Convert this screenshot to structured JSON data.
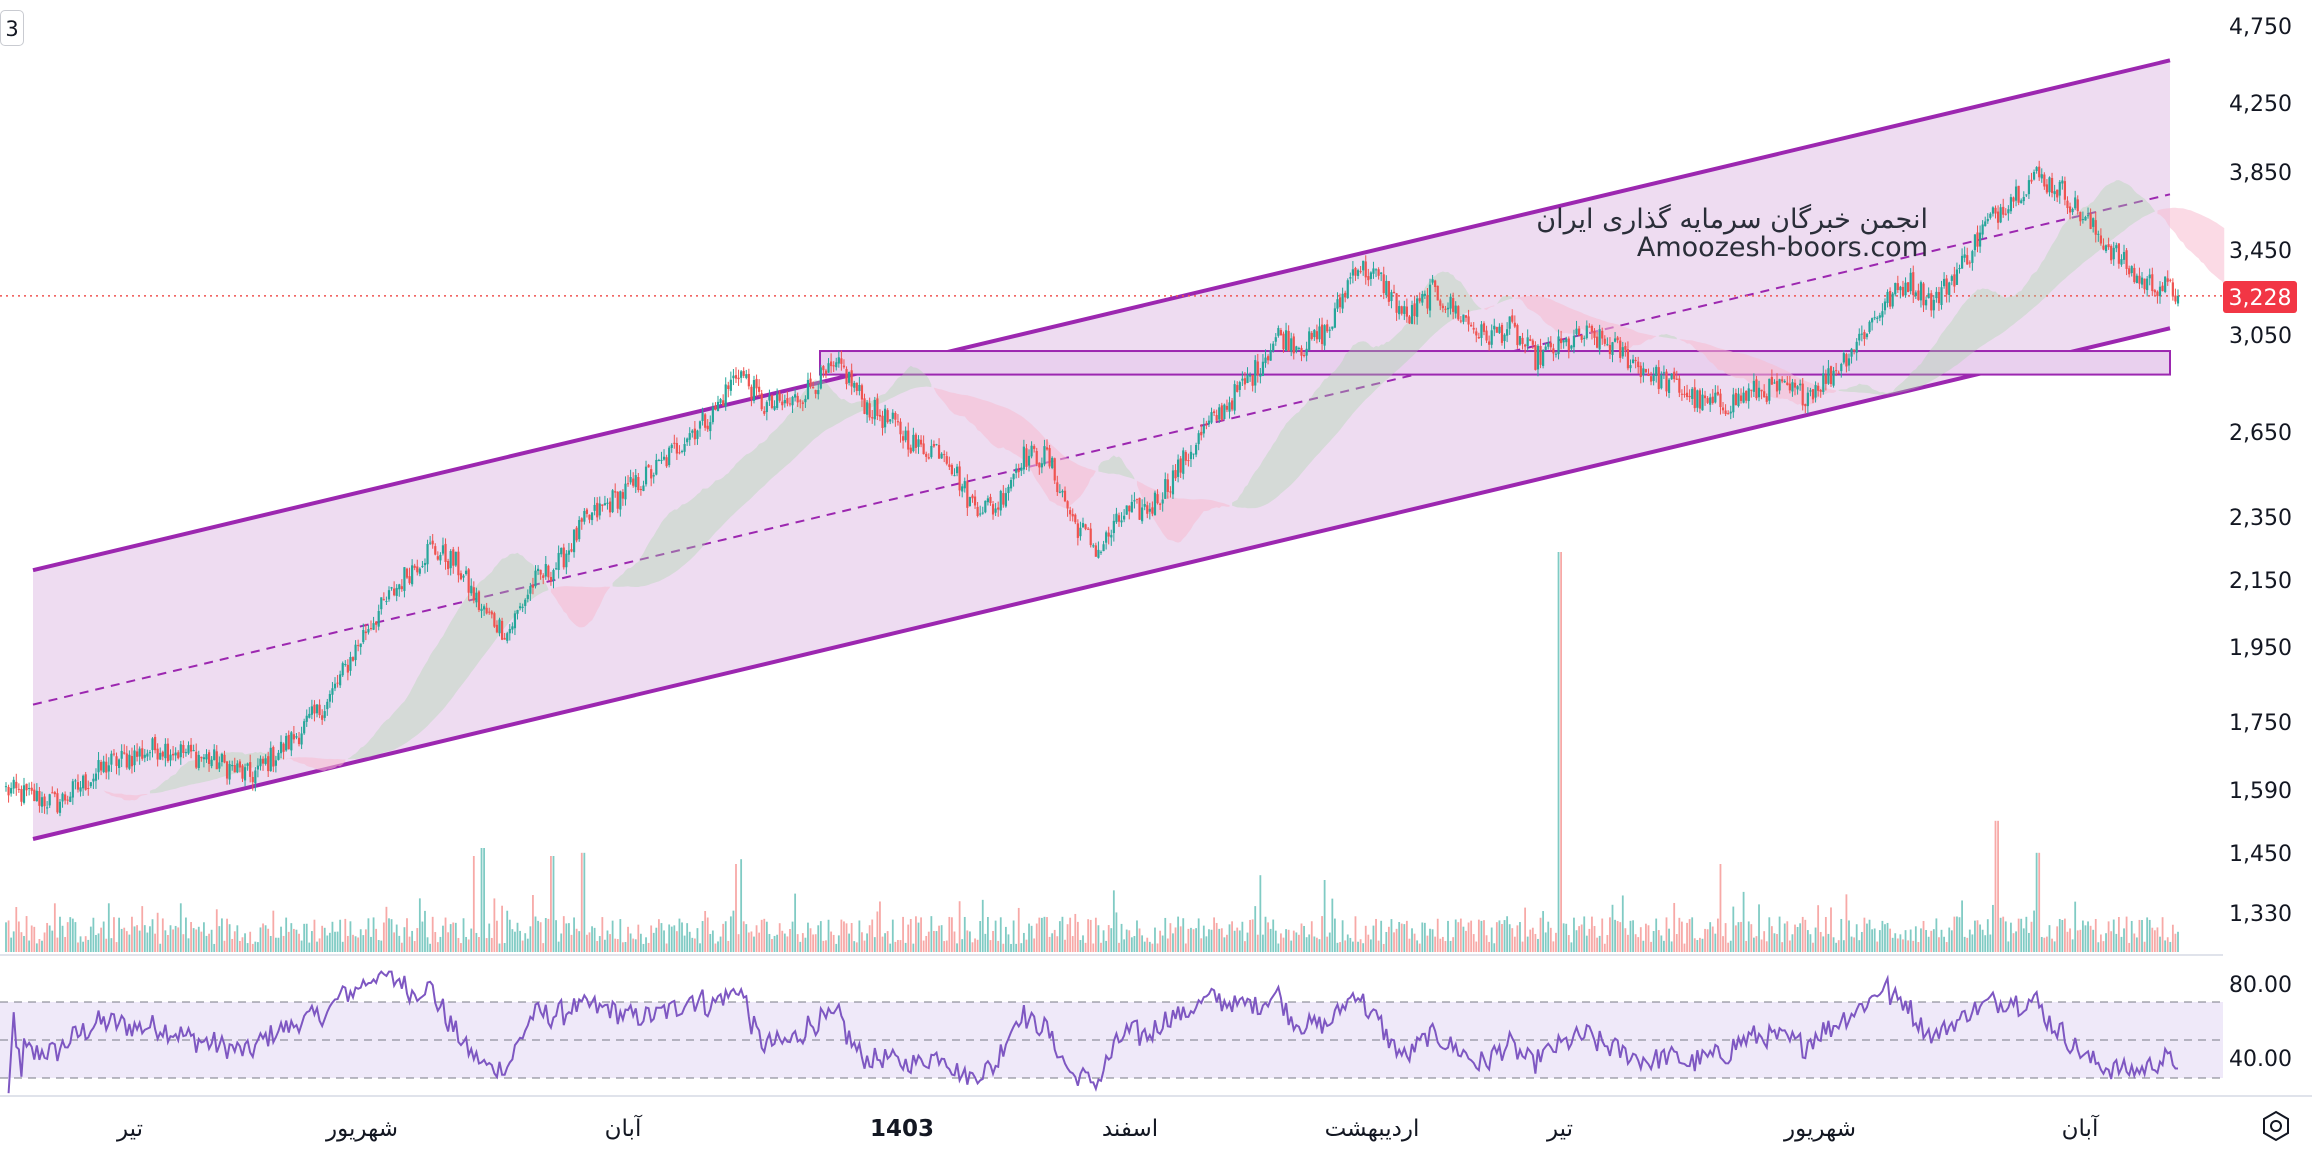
{
  "chart_data": {
    "type": "candlestick",
    "price_axis": {
      "ticks": [
        "4,750",
        "4,250",
        "3,850",
        "3,450",
        "3,050",
        "2,650",
        "2,350",
        "2,150",
        "1,950",
        "1,750",
        "1,590",
        "1,450",
        "1,330"
      ],
      "scale": "log",
      "current_price_label": "3,228",
      "current_price": 3228
    },
    "x_axis": {
      "labels": [
        {
          "text": "تیر",
          "bold": false
        },
        {
          "text": "شهریور",
          "bold": false
        },
        {
          "text": "آبان",
          "bold": false
        },
        {
          "text": "1403",
          "bold": true
        },
        {
          "text": "اسفند",
          "bold": false
        },
        {
          "text": "اردیبهشت",
          "bold": false
        },
        {
          "text": "تیر",
          "bold": false
        },
        {
          "text": "شهریور",
          "bold": false
        },
        {
          "text": "آبان",
          "bold": false
        }
      ]
    },
    "close_anchors": [
      [
        0,
        1590
      ],
      [
        20,
        1560
      ],
      [
        40,
        1650
      ],
      [
        60,
        1690
      ],
      [
        80,
        1660
      ],
      [
        95,
        1620
      ],
      [
        110,
        1700
      ],
      [
        125,
        1800
      ],
      [
        140,
        2000
      ],
      [
        155,
        2160
      ],
      [
        165,
        2250
      ],
      [
        175,
        2200
      ],
      [
        185,
        2060
      ],
      [
        195,
        1990
      ],
      [
        205,
        2140
      ],
      [
        215,
        2200
      ],
      [
        225,
        2330
      ],
      [
        235,
        2400
      ],
      [
        245,
        2460
      ],
      [
        255,
        2530
      ],
      [
        265,
        2640
      ],
      [
        275,
        2720
      ],
      [
        285,
        2900
      ],
      [
        295,
        2750
      ],
      [
        305,
        2760
      ],
      [
        315,
        2850
      ],
      [
        325,
        2910
      ],
      [
        335,
        2750
      ],
      [
        345,
        2680
      ],
      [
        355,
        2590
      ],
      [
        365,
        2590
      ],
      [
        375,
        2400
      ],
      [
        385,
        2380
      ],
      [
        395,
        2560
      ],
      [
        405,
        2560
      ],
      [
        415,
        2340
      ],
      [
        425,
        2240
      ],
      [
        435,
        2360
      ],
      [
        445,
        2380
      ],
      [
        455,
        2500
      ],
      [
        465,
        2640
      ],
      [
        475,
        2760
      ],
      [
        485,
        2880
      ],
      [
        495,
        3050
      ],
      [
        505,
        3000
      ],
      [
        515,
        3080
      ],
      [
        525,
        3380
      ],
      [
        535,
        3300
      ],
      [
        545,
        3120
      ],
      [
        555,
        3250
      ],
      [
        565,
        3150
      ],
      [
        575,
        3040
      ],
      [
        585,
        3080
      ],
      [
        595,
        2950
      ],
      [
        605,
        3000
      ],
      [
        615,
        3050
      ],
      [
        625,
        3000
      ],
      [
        640,
        2880
      ],
      [
        650,
        2830
      ],
      [
        660,
        2760
      ],
      [
        670,
        2760
      ],
      [
        680,
        2810
      ],
      [
        690,
        2820
      ],
      [
        700,
        2800
      ],
      [
        710,
        2880
      ],
      [
        720,
        3020
      ],
      [
        730,
        3180
      ],
      [
        740,
        3300
      ],
      [
        750,
        3200
      ],
      [
        760,
        3360
      ],
      [
        770,
        3570
      ],
      [
        780,
        3720
      ],
      [
        790,
        3830
      ],
      [
        800,
        3750
      ],
      [
        810,
        3580
      ],
      [
        820,
        3440
      ],
      [
        830,
        3300
      ],
      [
        840,
        3270
      ],
      [
        845,
        3228
      ]
    ],
    "channel": {
      "upper_start": 2180,
      "upper_end": 4520,
      "lower_start": 1480,
      "lower_end": 3080
    },
    "horizontal_zone": [
      2880,
      2980
    ],
    "rsi": {
      "levels": [
        "80.00",
        "40.00"
      ],
      "upper_band": 70,
      "middle_band": 50,
      "lower_band": 30,
      "end_value": 35
    },
    "watermark": {
      "line1": "انجمن خبرگان سرمایه گذاری ایران",
      "line2": "Amoozesh-boors.com"
    },
    "top_left_badge": "3",
    "colors": {
      "up": "#26a69a",
      "down": "#ef5350",
      "channel": "#9c27b0",
      "channel_fill": "#ebd6ee",
      "rsi_line": "#7e57c2",
      "rsi_band": "#efe9f9",
      "price_label_bg": "#f23645"
    }
  }
}
